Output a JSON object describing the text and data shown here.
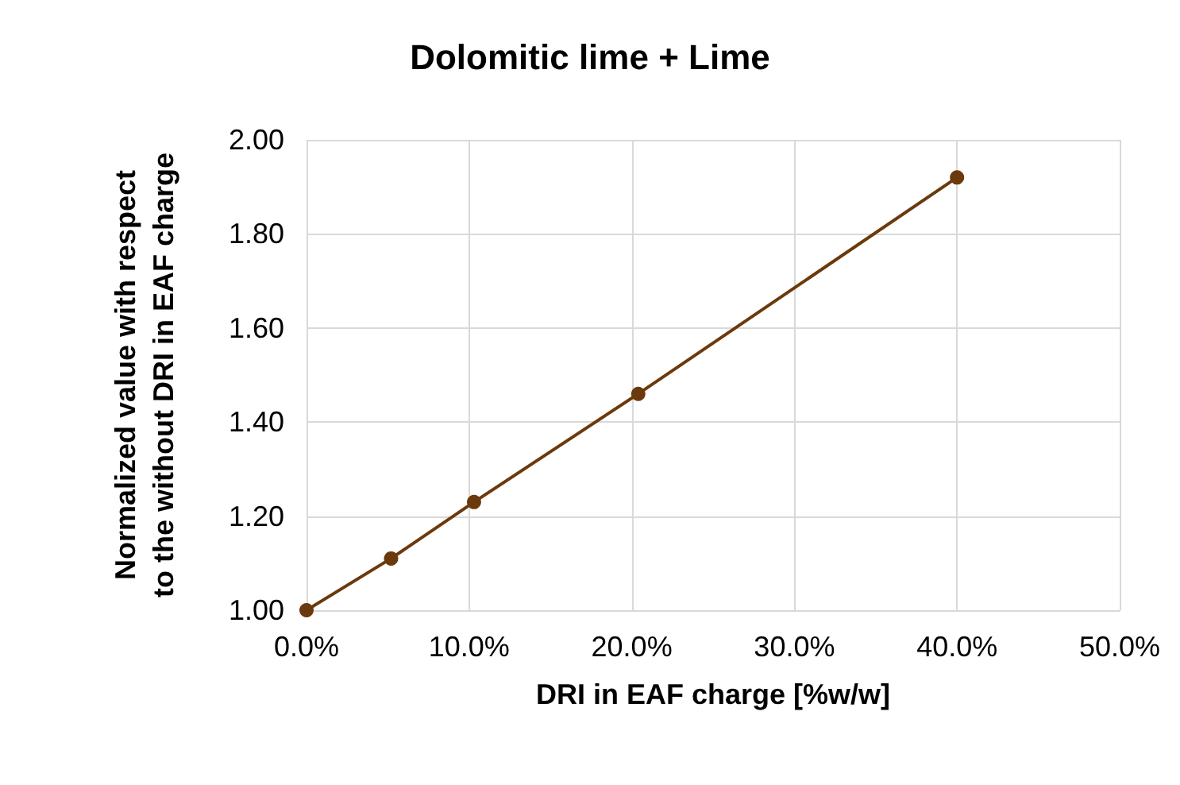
{
  "chart_data": {
    "type": "line",
    "title": "Dolomitic lime + Lime",
    "xlabel": "DRI in EAF charge [%w/w]",
    "ylabel": "Normalized value with respect\nto the without DRI in EAF charge",
    "x": [
      0,
      5.2,
      10.3,
      20.4,
      40
    ],
    "series": [
      {
        "color": "#6b3a0c",
        "values": [
          1.0,
          1.11,
          1.23,
          1.46,
          1.92
        ]
      }
    ],
    "xlim": [
      0,
      50
    ],
    "xticks": [
      {
        "value": 0,
        "label": "0.0%"
      },
      {
        "value": 10,
        "label": "10.0%"
      },
      {
        "value": 20,
        "label": "20.0%"
      },
      {
        "value": 30,
        "label": "30.0%"
      },
      {
        "value": 40,
        "label": "40.0%"
      },
      {
        "value": 50,
        "label": "50.0%"
      }
    ],
    "ylim": [
      1.0,
      2.0
    ],
    "yticks": [
      {
        "value": 1.0,
        "label": "1.00"
      },
      {
        "value": 1.2,
        "label": "1.20"
      },
      {
        "value": 1.4,
        "label": "1.40"
      },
      {
        "value": 1.6,
        "label": "1.60"
      },
      {
        "value": 1.8,
        "label": "1.80"
      },
      {
        "value": 2.0,
        "label": "2.00"
      }
    ],
    "grid": true,
    "marker": "circle",
    "line_style": "solid"
  }
}
